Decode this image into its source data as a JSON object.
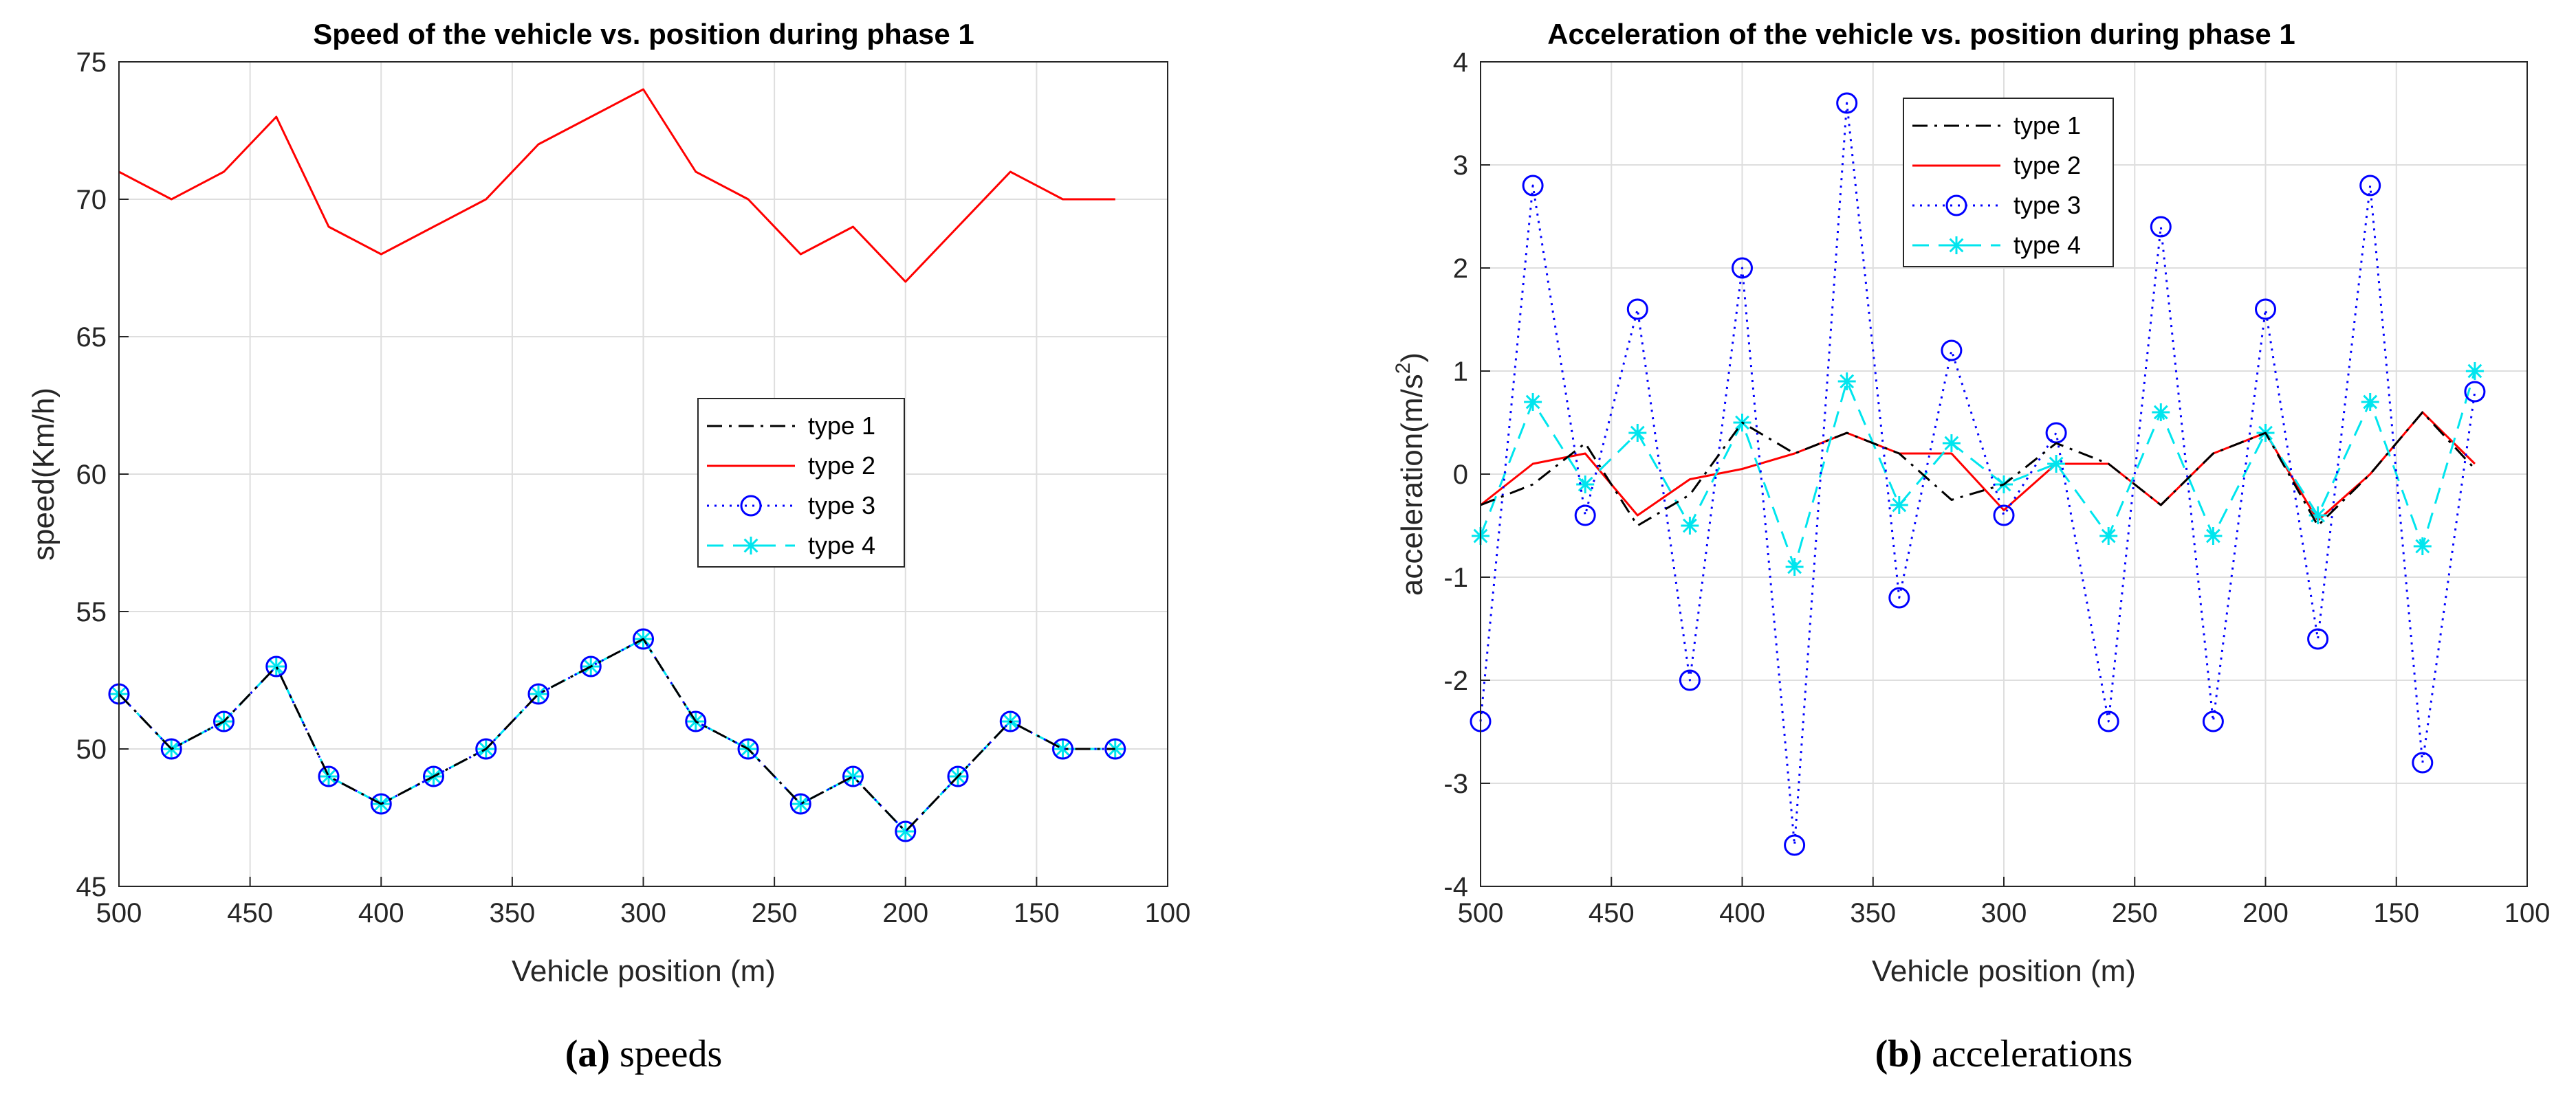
{
  "chart_data": [
    {
      "type": "line",
      "title": "Speed of the vehicle vs. position during phase 1",
      "xlabel": "Vehicle position (m)",
      "ylabel": "speed(Km/h)",
      "xlim": [
        500,
        100
      ],
      "ylim": [
        45,
        75
      ],
      "xticks": [
        500,
        450,
        400,
        350,
        300,
        250,
        200,
        150,
        100
      ],
      "yticks": [
        45,
        50,
        55,
        60,
        65,
        70,
        75
      ],
      "grid": true,
      "legend_position": "center-right",
      "x": [
        500,
        480,
        460,
        440,
        420,
        400,
        380,
        360,
        340,
        320,
        300,
        280,
        260,
        240,
        220,
        200,
        180,
        160,
        140,
        120
      ],
      "series": [
        {
          "name": "type 1",
          "color": "#000000",
          "style": "dashdot",
          "marker": "none",
          "values": [
            52,
            50,
            51,
            53,
            49,
            48,
            49,
            50,
            52,
            53,
            54,
            51,
            50,
            48,
            49,
            47,
            49,
            51,
            50,
            50
          ]
        },
        {
          "name": "type 2",
          "color": "#ff0000",
          "style": "solid",
          "marker": "none",
          "values": [
            71,
            70,
            71,
            73,
            69,
            68,
            69,
            70,
            72,
            73,
            74,
            71,
            70,
            68,
            69,
            67,
            69,
            71,
            70,
            70
          ]
        },
        {
          "name": "type 3",
          "color": "#0000ff",
          "style": "dotted",
          "marker": "circle",
          "values": [
            52,
            50,
            51,
            53,
            49,
            48,
            49,
            50,
            52,
            53,
            54,
            51,
            50,
            48,
            49,
            47,
            49,
            51,
            50,
            50
          ]
        },
        {
          "name": "type 4",
          "color": "#00e5ee",
          "style": "dashed",
          "marker": "asterisk",
          "values": [
            52,
            50,
            51,
            53,
            49,
            48,
            49,
            50,
            52,
            53,
            54,
            51,
            50,
            48,
            49,
            47,
            49,
            51,
            50,
            50
          ]
        }
      ],
      "caption_label": "(a)",
      "caption_text": "speeds"
    },
    {
      "type": "line",
      "title": "Acceleration of the vehicle vs. position during phase 1",
      "xlabel": "Vehicle position (m)",
      "ylabel": "acceleration(m/s",
      "ylabel_sup": "2",
      "ylabel_end": ")",
      "xlim": [
        500,
        100
      ],
      "ylim": [
        -4,
        4
      ],
      "xticks": [
        500,
        450,
        400,
        350,
        300,
        250,
        200,
        150,
        100
      ],
      "yticks": [
        -4,
        -3,
        -2,
        -1,
        0,
        1,
        2,
        3,
        4
      ],
      "grid": true,
      "legend_position": "top-left",
      "x": [
        500,
        480,
        460,
        440,
        420,
        400,
        380,
        360,
        340,
        320,
        300,
        280,
        260,
        240,
        220,
        200,
        180,
        160,
        140,
        120
      ],
      "series": [
        {
          "name": "type 1",
          "color": "#000000",
          "style": "dashdot",
          "marker": "none",
          "values": [
            -0.3,
            -0.1,
            0.3,
            -0.5,
            -0.2,
            0.5,
            0.2,
            0.4,
            0.2,
            -0.25,
            -0.1,
            0.3,
            0.1,
            -0.3,
            0.2,
            0.4,
            -0.5,
            0.0,
            0.6,
            0.05
          ]
        },
        {
          "name": "type 2",
          "color": "#ff0000",
          "style": "solid",
          "marker": "none",
          "values": [
            -0.3,
            0.1,
            0.2,
            -0.4,
            -0.05,
            0.05,
            0.2,
            0.4,
            0.2,
            0.2,
            -0.35,
            0.1,
            0.1,
            -0.3,
            0.2,
            0.4,
            -0.45,
            0.0,
            0.6,
            0.1
          ]
        },
        {
          "name": "type 3",
          "color": "#0000ff",
          "style": "dotted",
          "marker": "circle",
          "values": [
            -2.4,
            2.8,
            -0.4,
            1.6,
            -2.0,
            2.0,
            -3.6,
            3.6,
            -1.2,
            1.2,
            -0.4,
            0.4,
            -2.4,
            2.4,
            -2.4,
            1.6,
            -1.6,
            2.8,
            -2.8,
            0.8
          ]
        },
        {
          "name": "type 4",
          "color": "#00e5ee",
          "style": "dashed",
          "marker": "asterisk",
          "values": [
            -0.6,
            0.7,
            -0.1,
            0.4,
            -0.5,
            0.5,
            -0.9,
            0.9,
            -0.3,
            0.3,
            -0.1,
            0.1,
            -0.6,
            0.6,
            -0.6,
            0.4,
            -0.4,
            0.7,
            -0.7,
            1.0
          ]
        }
      ],
      "caption_label": "(b)",
      "caption_text": "accelerations"
    }
  ]
}
